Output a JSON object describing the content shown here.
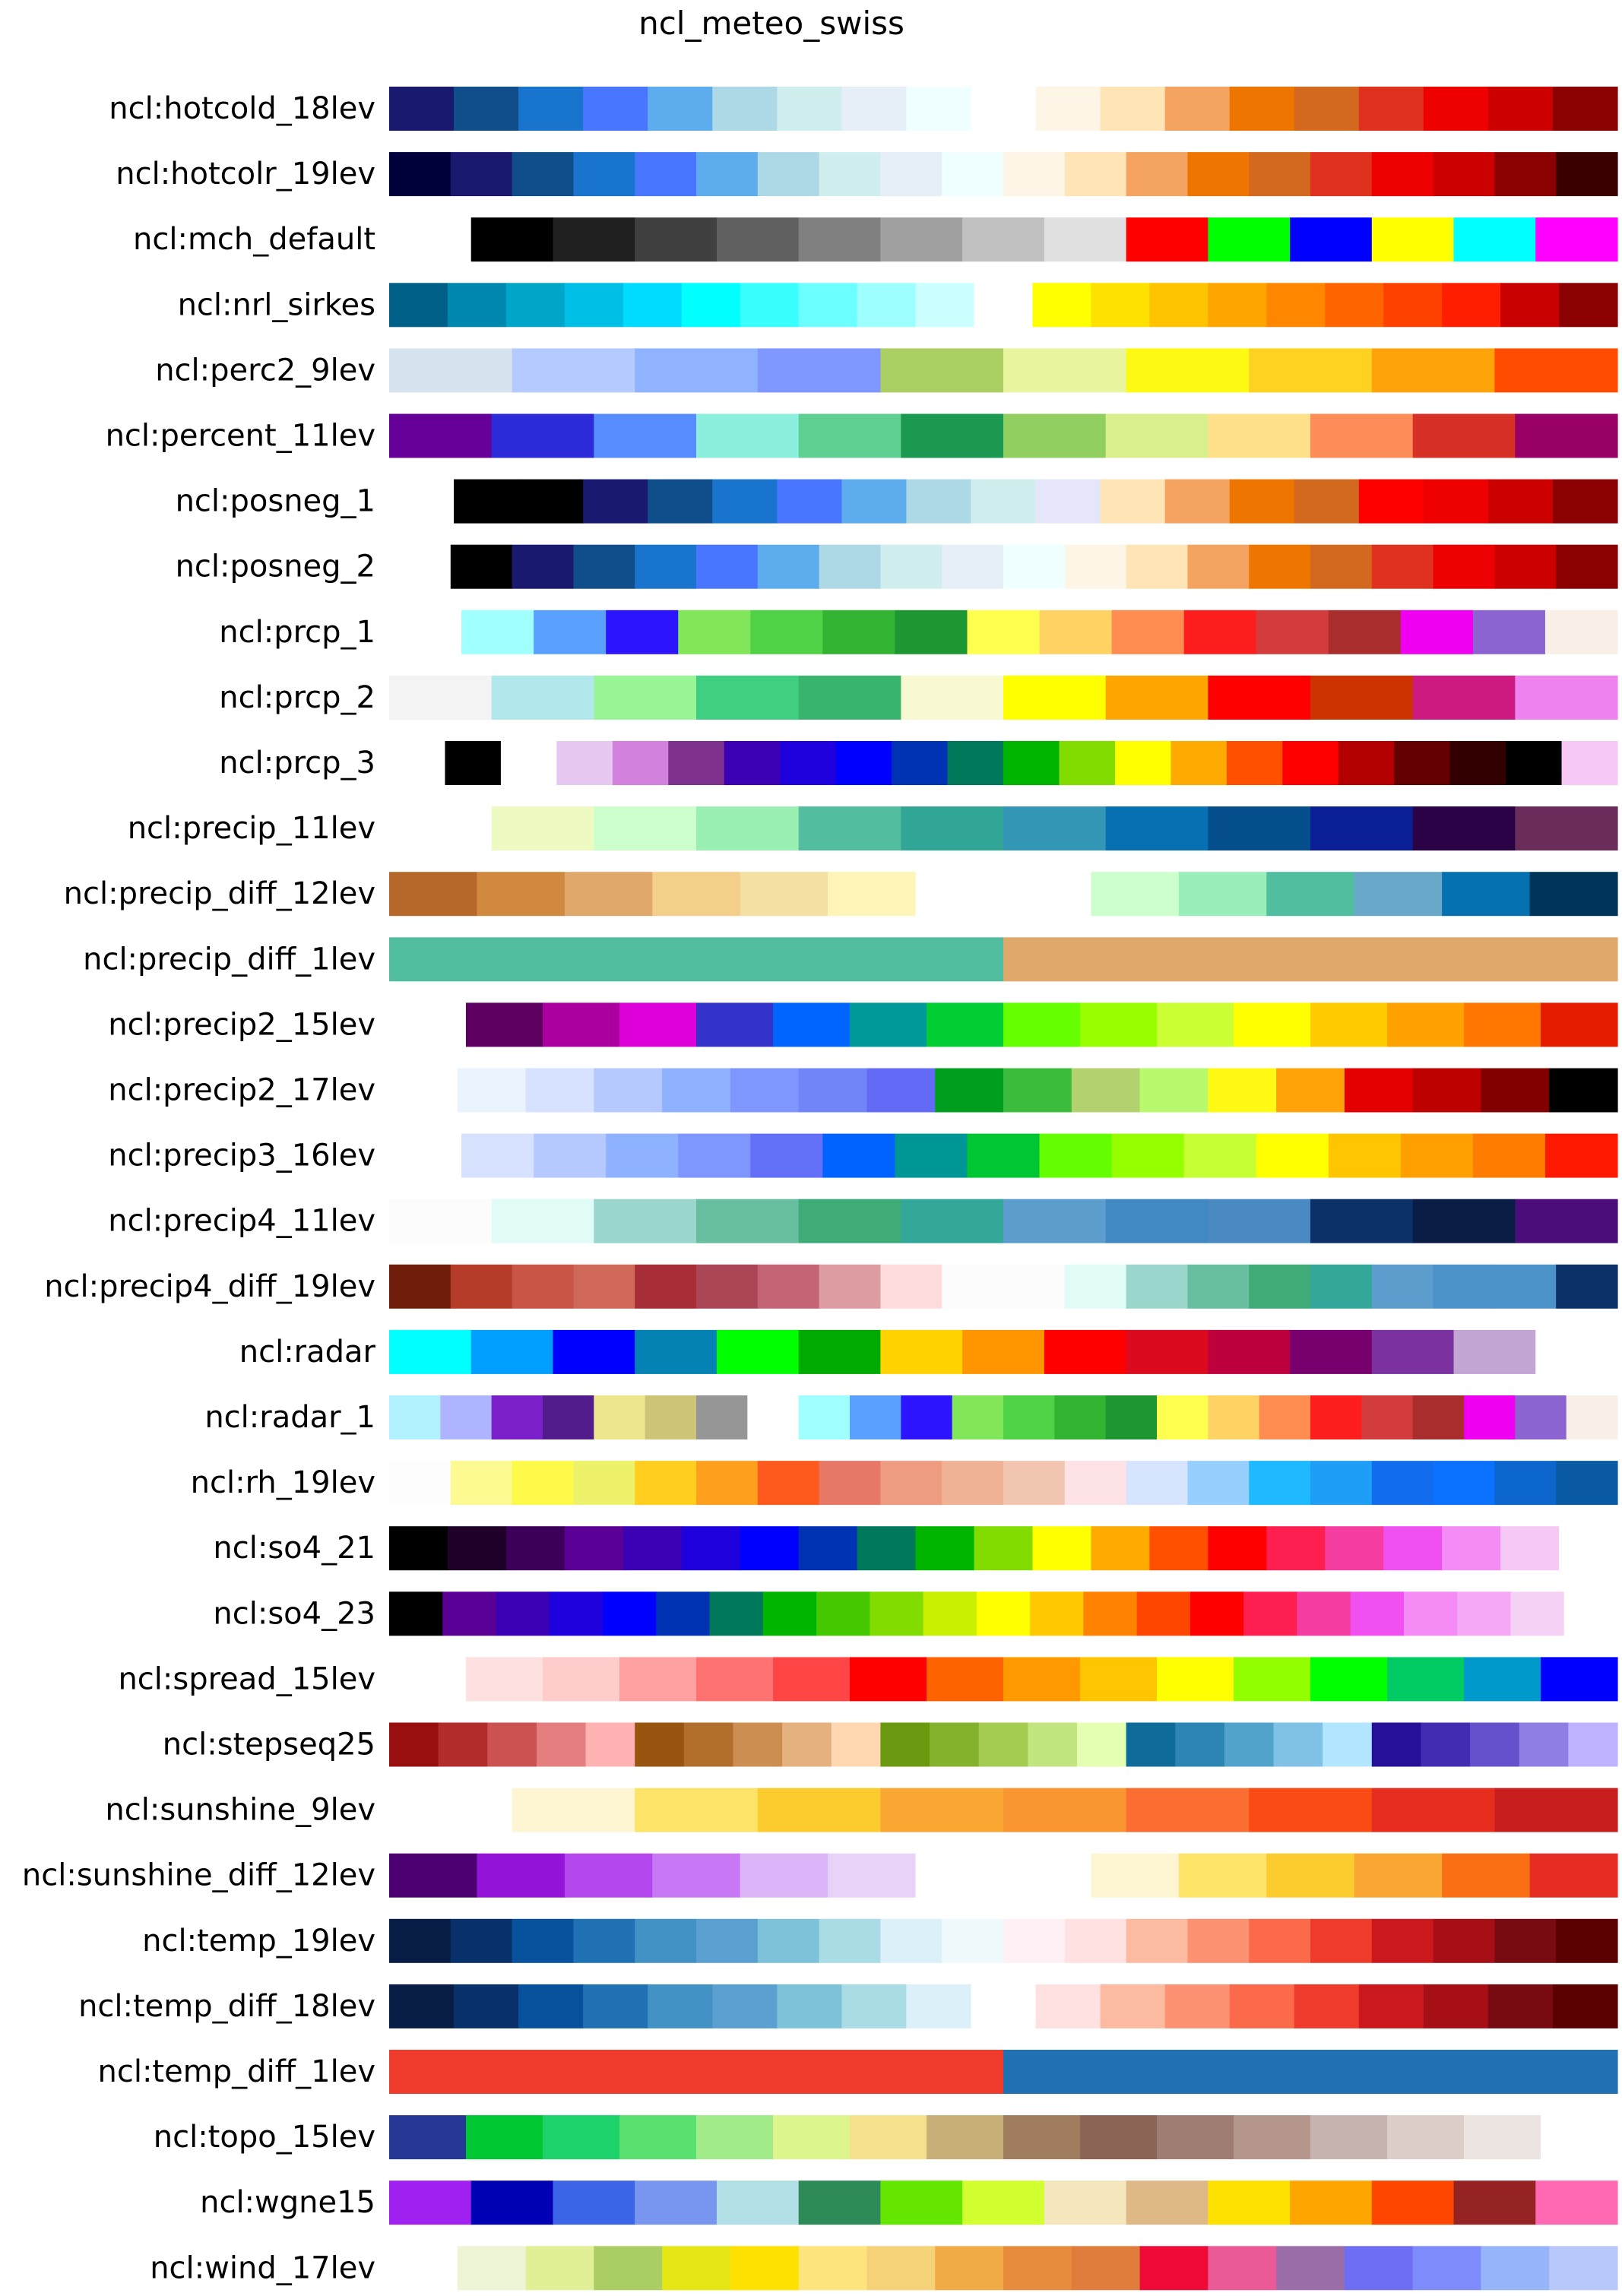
{
  "chart_data": {
    "type": "colormap",
    "title": "ncl_meteo_swiss",
    "rows": [
      {
        "name": "ncl:hotcold_18lev",
        "colors": [
          "#191970",
          "#104e8b",
          "#1874cd",
          "#4876ff",
          "#5cacee",
          "#add8e6",
          "#d1eeee",
          "#e6eef8",
          "#f0ffff",
          "#ffffff",
          "#fdf5e6",
          "#ffe4b5",
          "#f4a460",
          "#ee7600",
          "#d2691e",
          "#e0301e",
          "#ee0000",
          "#cd0000",
          "#8b0000"
        ]
      },
      {
        "name": "ncl:hotcolr_19lev",
        "colors": [
          "#00003a",
          "#191970",
          "#104e8b",
          "#1874cd",
          "#4876ff",
          "#5cacee",
          "#add8e6",
          "#d1eeee",
          "#e6eef8",
          "#f0ffff",
          "#fdf5e6",
          "#ffe4b5",
          "#f4a460",
          "#ee7600",
          "#d2691e",
          "#e0301e",
          "#ee0000",
          "#cd0000",
          "#8b0000",
          "#3a0000"
        ]
      },
      {
        "name": "ncl:mch_default",
        "colors": [
          "#ffffff",
          "#000000",
          "#202020",
          "#404040",
          "#606060",
          "#808080",
          "#a0a0a0",
          "#c0c0c0",
          "#e0e0e0",
          "#ff0000",
          "#00ff00",
          "#0000ff",
          "#ffff00",
          "#00ffff",
          "#ff00ff"
        ]
      },
      {
        "name": "ncl:nrl_sirkes",
        "colors": [
          "#005f87",
          "#0087af",
          "#00a6c8",
          "#00bfe6",
          "#00dcff",
          "#00ffff",
          "#39ffff",
          "#6cffff",
          "#9effff",
          "#ccffff",
          "#ffffff",
          "#ffff00",
          "#ffe100",
          "#ffc300",
          "#ffa500",
          "#ff8700",
          "#ff6400",
          "#ff4100",
          "#ff1e00",
          "#c80000",
          "#8b0000"
        ]
      },
      {
        "name": "ncl:perc2_9lev",
        "colors": [
          "#d7e3ee",
          "#b5caff",
          "#8fb3ff",
          "#7f97ff",
          "#abcf63",
          "#e8f59e",
          "#fffa14",
          "#ffd121",
          "#ffa30a",
          "#ff4c00"
        ]
      },
      {
        "name": "ncl:percent_11lev",
        "colors": [
          "#660099",
          "#2b2bd9",
          "#578cff",
          "#8ceedc",
          "#5fd091",
          "#1b9950",
          "#91cf60",
          "#d9ef8b",
          "#fee08b",
          "#fc8d59",
          "#d73027",
          "#990066"
        ]
      },
      {
        "name": "ncl:posneg_1",
        "colors": [
          "#ffffff",
          "#000000",
          "#000000",
          "#191970",
          "#104e8b",
          "#1874cd",
          "#4876ff",
          "#5cacee",
          "#add8e6",
          "#d1eeee",
          "#e6e6fa",
          "#ffe4b5",
          "#f4a460",
          "#ee7600",
          "#d2691e",
          "#ff0000",
          "#ee0000",
          "#cd0000",
          "#8b0000"
        ]
      },
      {
        "name": "ncl:posneg_2",
        "colors": [
          "#ffffff",
          "#000000",
          "#191970",
          "#104e8b",
          "#1874cd",
          "#4876ff",
          "#5cacee",
          "#add8e6",
          "#d1eeee",
          "#e6eef8",
          "#f0ffff",
          "#fdf5e6",
          "#ffe4b5",
          "#f4a460",
          "#ee7600",
          "#d2691e",
          "#e0301e",
          "#ee0000",
          "#cd0000",
          "#8b0000"
        ]
      },
      {
        "name": "ncl:prcp_1",
        "colors": [
          "#ffffff",
          "#a0ffff",
          "#5aa0ff",
          "#2d14ff",
          "#82e65a",
          "#50d246",
          "#32b432",
          "#1e9632",
          "#ffff50",
          "#ffd264",
          "#ff8c50",
          "#ff1e1e",
          "#d23c3c",
          "#aa2d2d",
          "#f000f0",
          "#8c64d2",
          "#f8f0e6"
        ]
      },
      {
        "name": "ncl:prcp_2",
        "colors": [
          "#f3f3f3",
          "#b0e8ec",
          "#98f598",
          "#40cf80",
          "#38b46f",
          "#f8f8d2",
          "#ffff00",
          "#ffa500",
          "#ff0000",
          "#cc3300",
          "#cc1a80",
          "#ee82ee"
        ]
      },
      {
        "name": "ncl:prcp_3",
        "colors": [
          "#ffffff",
          "#000000",
          "#ffffff",
          "#e6c8f0",
          "#d282dc",
          "#7d308c",
          "#3c00b4",
          "#1e00dc",
          "#0000ff",
          "#0032b4",
          "#00785a",
          "#00b400",
          "#82dc00",
          "#ffff00",
          "#ffaa00",
          "#ff5000",
          "#ff0000",
          "#b40000",
          "#640000",
          "#320000",
          "#000000",
          "#f5c8f5"
        ]
      },
      {
        "name": "ncl:precip_11lev",
        "colors": [
          "#ffffff",
          "#edfac2",
          "#cdffcd",
          "#99f0b2",
          "#53bd9f",
          "#32a696",
          "#3296b4",
          "#0670b3",
          "#05508c",
          "#0a1f96",
          "#2c0246",
          "#6a2c5a"
        ]
      },
      {
        "name": "ncl:precip_diff_12lev",
        "colors": [
          "#b6672a",
          "#d0893f",
          "#e0a86a",
          "#f4cf8a",
          "#f4e1a2",
          "#fff5b8",
          "#ffffff",
          "#ffffff",
          "#ccffcc",
          "#99efb9",
          "#52bea0",
          "#6aa8c9",
          "#0571b0",
          "#00355a"
        ]
      },
      {
        "name": "ncl:precip_diff_1lev",
        "colors": [
          "#52bea0",
          "#e0a86a"
        ]
      },
      {
        "name": "ncl:precip2_15lev",
        "colors": [
          "#ffffff",
          "#5d0062",
          "#ab009f",
          "#de00d8",
          "#3333cc",
          "#0064ff",
          "#009999",
          "#00cc33",
          "#65ff00",
          "#99ff00",
          "#ccff33",
          "#ffff00",
          "#ffcc00",
          "#ffa200",
          "#ff7700",
          "#e51c00"
        ]
      },
      {
        "name": "ncl:precip2_17lev",
        "colors": [
          "#ffffff",
          "#eaf4ff",
          "#d6e2ff",
          "#b5c9ff",
          "#8eb2ff",
          "#7f96ff",
          "#7285f8",
          "#636bf6",
          "#009e1e",
          "#3cbc3d",
          "#b3d16e",
          "#b9f96e",
          "#fff913",
          "#ffa309",
          "#e50000",
          "#bd0000",
          "#810000",
          "#000000"
        ]
      },
      {
        "name": "ncl:precip3_16lev",
        "colors": [
          "#ffffff",
          "#d6e2ff",
          "#b5c9ff",
          "#8eb2ff",
          "#7f96ff",
          "#6370f8",
          "#0063ff",
          "#009696",
          "#00c633",
          "#63ff00",
          "#96ff00",
          "#c6ff33",
          "#ffff00",
          "#ffc600",
          "#ffa000",
          "#ff7c00",
          "#ff1900"
        ]
      },
      {
        "name": "ncl:precip4_11lev",
        "colors": [
          "#fcfcfc",
          "#e1fbf7",
          "#9ad6cb",
          "#67bf9f",
          "#3fac77",
          "#33a89a",
          "#5d9dce",
          "#4089c2",
          "#4b89c3",
          "#0c3068",
          "#091c46",
          "#4a0d7a"
        ]
      },
      {
        "name": "ncl:precip4_diff_19lev",
        "colors": [
          "#6e1e0a",
          "#b43c28",
          "#c85546",
          "#cf6859",
          "#a72d36",
          "#aa4656",
          "#c46474",
          "#dc9ca2",
          "#ffdcdc",
          "#fcfcfc",
          "#fcfcfc",
          "#e1fbf7",
          "#9ad6cb",
          "#67bf9f",
          "#3fac77",
          "#33a89a",
          "#5d9dce",
          "#4b93c8",
          "#4b93c8",
          "#0c3068"
        ]
      },
      {
        "name": "ncl:radar",
        "colors": [
          "#00ffff",
          "#009eff",
          "#0000ff",
          "#0482b4",
          "#00ff00",
          "#00aa00",
          "#ffd200",
          "#ff9600",
          "#ff0000",
          "#dc0a1e",
          "#be003c",
          "#78006e",
          "#7b32a0",
          "#c2a5d3",
          "#ffffff"
        ]
      },
      {
        "name": "ncl:radar_1",
        "colors": [
          "#b2f2ff",
          "#aeb4ff",
          "#7920c8",
          "#521c8c",
          "#ede68d",
          "#cdc477",
          "#969696",
          "#ffffff",
          "#a0ffff",
          "#5aa0ff",
          "#2d14ff",
          "#82e65a",
          "#50d246",
          "#32b432",
          "#1e9632",
          "#ffff50",
          "#ffd264",
          "#ff8c50",
          "#ff1e1e",
          "#d23c3c",
          "#aa2d2d",
          "#f000f0",
          "#8c64d2",
          "#f8f0e6"
        ]
      },
      {
        "name": "ncl:rh_19lev",
        "colors": [
          "#fdfdfd",
          "#fdfa92",
          "#fefa4a",
          "#eef26b",
          "#ffce1e",
          "#ff9f1e",
          "#ff5a1e",
          "#e87866",
          "#ee9c80",
          "#efb295",
          "#f2c5b1",
          "#fde3e6",
          "#d6e4fe",
          "#97d0ff",
          "#1eb9ff",
          "#1e9ef7",
          "#126dee",
          "#0b72ff",
          "#0c66cd",
          "#0a5aa4"
        ]
      },
      {
        "name": "ncl:so4_21",
        "colors": [
          "#000000",
          "#1e0028",
          "#3c005a",
          "#5a0096",
          "#3c00b4",
          "#1e00dc",
          "#0000ff",
          "#0032b4",
          "#00785a",
          "#00b400",
          "#82dc00",
          "#ffff00",
          "#ffaa00",
          "#ff5000",
          "#ff0000",
          "#ff1e50",
          "#f53ca0",
          "#f050f0",
          "#f58cf5",
          "#f5c8f5",
          "#ffffff"
        ]
      },
      {
        "name": "ncl:so4_23",
        "colors": [
          "#000000",
          "#5a0096",
          "#3c00b4",
          "#1e00dc",
          "#0000ff",
          "#0032b4",
          "#00785a",
          "#00b400",
          "#46c800",
          "#82dc00",
          "#c8f000",
          "#ffff00",
          "#ffc800",
          "#ff8200",
          "#ff4600",
          "#ff0000",
          "#ff1e50",
          "#f53ca0",
          "#f050f0",
          "#f58cf5",
          "#f5a8f5",
          "#f5d2f5",
          "#ffffff"
        ]
      },
      {
        "name": "ncl:spread_15lev",
        "colors": [
          "#ffffff",
          "#ffe0e0",
          "#ffcccc",
          "#ffa0a0",
          "#ff7272",
          "#ff4545",
          "#ff0000",
          "#ff6300",
          "#ff9900",
          "#ffc600",
          "#ffff00",
          "#91ff00",
          "#00ff00",
          "#00cc63",
          "#0099cc",
          "#0000ff"
        ]
      },
      {
        "name": "ncl:stepseq25",
        "colors": [
          "#990f0f",
          "#b22c2c",
          "#cc5151",
          "#e57f7f",
          "#ffb2b2",
          "#99540f",
          "#b26f2c",
          "#cc8f51",
          "#e5b17f",
          "#ffd8b2",
          "#6b990f",
          "#85b22c",
          "#a3cc51",
          "#c2e57f",
          "#e5ffb2",
          "#0f6b99",
          "#2c85b2",
          "#51a3cc",
          "#7fc2e5",
          "#b2e5ff",
          "#260f99",
          "#422cb2",
          "#6551cc",
          "#8f7fe5",
          "#bfb2ff"
        ]
      },
      {
        "name": "ncl:sunshine_9lev",
        "colors": [
          "#ffffff",
          "#fef5d2",
          "#fde367",
          "#fccb2d",
          "#faa632",
          "#fa9632",
          "#fa6e32",
          "#fa4b14",
          "#e62d1e",
          "#c81e1e"
        ]
      },
      {
        "name": "ncl:sunshine_diff_12lev",
        "colors": [
          "#4c0072",
          "#9314d8",
          "#b446ee",
          "#c878f5",
          "#dcb4f8",
          "#e8d2f8",
          "#ffffff",
          "#ffffff",
          "#fef5d2",
          "#fde367",
          "#fccb2d",
          "#faa632",
          "#fa6e14",
          "#e62d23"
        ]
      },
      {
        "name": "ncl:temp_19lev",
        "colors": [
          "#081d46",
          "#08306b",
          "#08519c",
          "#2171b5",
          "#4292c6",
          "#5aa0d1",
          "#7dc2d8",
          "#aadce6",
          "#dcf0fa",
          "#f0fafc",
          "#fff0f5",
          "#ffe1e1",
          "#fcbba1",
          "#fc9272",
          "#fb6a4a",
          "#ef3b2c",
          "#cb181d",
          "#a50f15",
          "#780a12",
          "#5a0000"
        ]
      },
      {
        "name": "ncl:temp_diff_18lev",
        "colors": [
          "#081d46",
          "#08306b",
          "#08519c",
          "#2171b5",
          "#4292c6",
          "#5aa0d1",
          "#7dc2d8",
          "#aadce6",
          "#dcf0fa",
          "#ffffff",
          "#ffe1e1",
          "#fcbba1",
          "#fc9272",
          "#fb6a4a",
          "#ef3b2c",
          "#cb181d",
          "#a50f15",
          "#780a12",
          "#5a0000"
        ]
      },
      {
        "name": "ncl:temp_diff_1lev",
        "colors": [
          "#ef3b2c",
          "#2171b5"
        ]
      },
      {
        "name": "ncl:topo_15lev",
        "colors": [
          "#263896",
          "#00c832",
          "#1dd26b",
          "#5ae06e",
          "#a1eb8b",
          "#dcf58c",
          "#f5e18c",
          "#c8af78",
          "#a07d5f",
          "#8c6455",
          "#a07d73",
          "#b4968c",
          "#c8b4af",
          "#dccdc8",
          "#ebe4e1",
          "#ffffff"
        ]
      },
      {
        "name": "ncl:wgne15",
        "colors": [
          "#a020f0",
          "#0000b4",
          "#3c64e6",
          "#7896f0",
          "#b0e0e6",
          "#2e8b57",
          "#64e600",
          "#d2ff2f",
          "#f5e6be",
          "#deb887",
          "#ffe100",
          "#ffa500",
          "#ff4600",
          "#962323",
          "#ff69b4"
        ]
      },
      {
        "name": "ncl:wind_17lev",
        "colors": [
          "#ffffff",
          "#eef5d7",
          "#e1f096",
          "#aacd64",
          "#e6e614",
          "#ffe100",
          "#fde47b",
          "#f5d278",
          "#f0aa46",
          "#e68c3c",
          "#e17d3c",
          "#f00a37",
          "#eb5a96",
          "#9b6eaa",
          "#6e6ef5",
          "#7d8cfa",
          "#96b4fa",
          "#b9c8fa"
        ]
      }
    ]
  }
}
